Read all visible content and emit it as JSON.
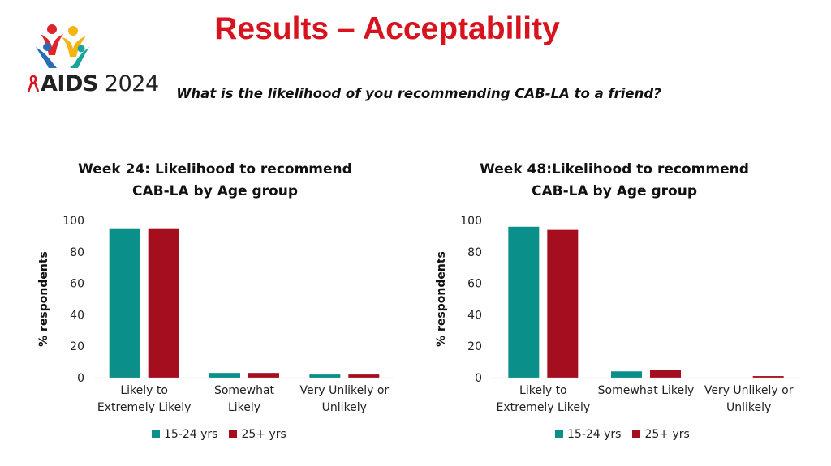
{
  "slide": {
    "title": "Results – Acceptability",
    "question": "What is the likelihood of you recommending CAB-LA to a friend?"
  },
  "logo": {
    "text_bold": "AIDS",
    "text_light": "2024"
  },
  "colors": {
    "title_red": "#d7141e",
    "series_teal": "#0a8f8b",
    "series_red": "#a50e1e",
    "axis": "#d9d9d9"
  },
  "chart_data": [
    {
      "type": "bar",
      "title_lines": [
        "Week 24: Likelihood to recommend",
        "CAB-LA by Age group"
      ],
      "ylabel": "% respondents",
      "xlabel": "",
      "ylim": [
        0,
        100
      ],
      "yticks": [
        "0",
        "20",
        "40",
        "60",
        "80",
        "100"
      ],
      "grid": false,
      "legend_position": "bottom",
      "categories": [
        [
          "Likely to",
          "Extremely Likely"
        ],
        [
          "Somewhat",
          "Likely"
        ],
        [
          "Very Unlikely or",
          "Unlikely"
        ]
      ],
      "series": [
        {
          "name": "15-24 yrs",
          "color": "#0a8f8b",
          "values": [
            95,
            3,
            2
          ]
        },
        {
          "name": "25+ yrs",
          "color": "#a50e1e",
          "values": [
            95,
            3,
            2
          ]
        }
      ]
    },
    {
      "type": "bar",
      "title_lines": [
        "Week 48:Likelihood to recommend",
        "CAB-LA by Age group"
      ],
      "ylabel": "% respondents",
      "xlabel": "",
      "ylim": [
        0,
        100
      ],
      "yticks": [
        "0",
        "20",
        "40",
        "60",
        "80",
        "100"
      ],
      "grid": false,
      "legend_position": "bottom",
      "categories": [
        [
          "Likely to",
          "Extremely Likely"
        ],
        [
          "Somewhat Likely"
        ],
        [
          "Very Unlikely or",
          "Unlikely"
        ]
      ],
      "series": [
        {
          "name": "15-24 yrs",
          "color": "#0a8f8b",
          "values": [
            96,
            4,
            0
          ]
        },
        {
          "name": "25+ yrs",
          "color": "#a50e1e",
          "values": [
            94,
            5,
            1
          ]
        }
      ]
    }
  ]
}
